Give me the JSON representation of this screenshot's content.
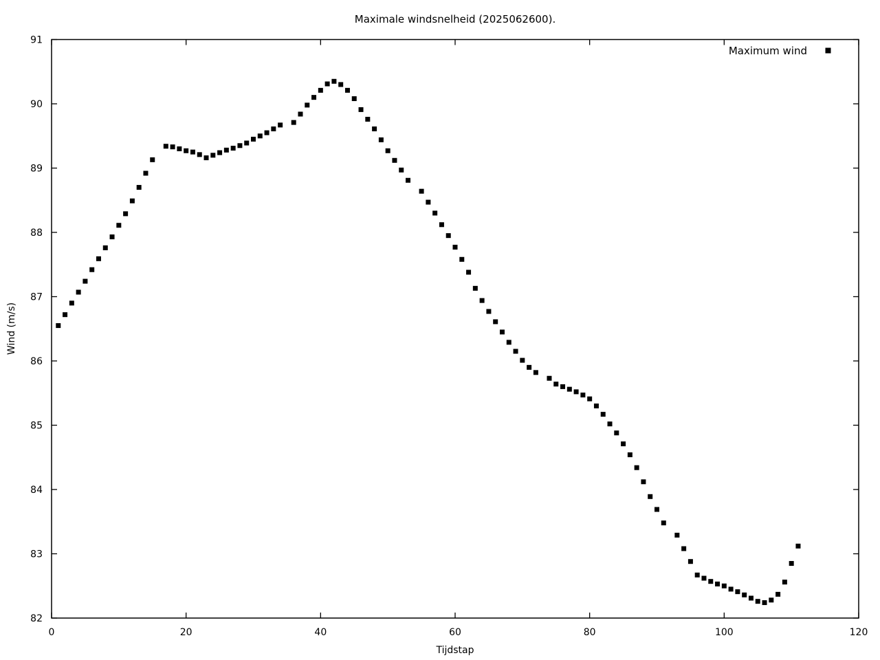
{
  "colors": {
    "background": "#ffffff",
    "foreground": "#000000",
    "marker": "#000000"
  },
  "chart_data": {
    "type": "scatter",
    "title": "Maximale windsnelheid (2025062600).",
    "xlabel": "Tijdstap",
    "ylabel": "Wind (m/s)",
    "xlim": [
      0,
      120
    ],
    "ylim": [
      82,
      91
    ],
    "xticks": [
      0,
      20,
      40,
      60,
      80,
      100,
      120
    ],
    "yticks": [
      82,
      83,
      84,
      85,
      86,
      87,
      88,
      89,
      90,
      91
    ],
    "grid": false,
    "legend": {
      "position": "top-right-inside",
      "entries": [
        {
          "label": "Maximum wind",
          "marker": "filled-square",
          "color": "#000000"
        }
      ]
    },
    "series": [
      {
        "name": "Maximum wind",
        "marker": "filled-square",
        "marker_size_px": 7,
        "color": "#000000",
        "points": [
          [
            1,
            86.55
          ],
          [
            2,
            86.72
          ],
          [
            3,
            86.9
          ],
          [
            4,
            87.07
          ],
          [
            5,
            87.24
          ],
          [
            6,
            87.42
          ],
          [
            7,
            87.59
          ],
          [
            8,
            87.76
          ],
          [
            9,
            87.93
          ],
          [
            10,
            88.11
          ],
          [
            11,
            88.29
          ],
          [
            12,
            88.49
          ],
          [
            13,
            88.7
          ],
          [
            14,
            88.92
          ],
          [
            15,
            89.13
          ],
          [
            17,
            89.34
          ],
          [
            18,
            89.33
          ],
          [
            19,
            89.3
          ],
          [
            20,
            89.27
          ],
          [
            21,
            89.25
          ],
          [
            22,
            89.21
          ],
          [
            23,
            89.16
          ],
          [
            24,
            89.2
          ],
          [
            25,
            89.24
          ],
          [
            26,
            89.28
          ],
          [
            27,
            89.31
          ],
          [
            28,
            89.35
          ],
          [
            29,
            89.39
          ],
          [
            30,
            89.45
          ],
          [
            31,
            89.5
          ],
          [
            32,
            89.55
          ],
          [
            33,
            89.61
          ],
          [
            34,
            89.67
          ],
          [
            36,
            89.71
          ],
          [
            37,
            89.84
          ],
          [
            38,
            89.98
          ],
          [
            39,
            90.1
          ],
          [
            40,
            90.21
          ],
          [
            41,
            90.31
          ],
          [
            42,
            90.35
          ],
          [
            43,
            90.3
          ],
          [
            44,
            90.21
          ],
          [
            45,
            90.08
          ],
          [
            46,
            89.91
          ],
          [
            47,
            89.76
          ],
          [
            48,
            89.61
          ],
          [
            49,
            89.44
          ],
          [
            50,
            89.27
          ],
          [
            51,
            89.12
          ],
          [
            52,
            88.97
          ],
          [
            53,
            88.81
          ],
          [
            55,
            88.64
          ],
          [
            56,
            88.47
          ],
          [
            57,
            88.3
          ],
          [
            58,
            88.12
          ],
          [
            59,
            87.95
          ],
          [
            60,
            87.77
          ],
          [
            61,
            87.58
          ],
          [
            62,
            87.38
          ],
          [
            63,
            87.13
          ],
          [
            64,
            86.94
          ],
          [
            65,
            86.77
          ],
          [
            66,
            86.61
          ],
          [
            67,
            86.45
          ],
          [
            68,
            86.29
          ],
          [
            69,
            86.15
          ],
          [
            70,
            86.01
          ],
          [
            71,
            85.9
          ],
          [
            72,
            85.82
          ],
          [
            74,
            85.73
          ],
          [
            75,
            85.64
          ],
          [
            76,
            85.6
          ],
          [
            77,
            85.56
          ],
          [
            78,
            85.52
          ],
          [
            79,
            85.47
          ],
          [
            80,
            85.41
          ],
          [
            81,
            85.3
          ],
          [
            82,
            85.17
          ],
          [
            83,
            85.02
          ],
          [
            84,
            84.88
          ],
          [
            85,
            84.71
          ],
          [
            86,
            84.54
          ],
          [
            87,
            84.34
          ],
          [
            88,
            84.12
          ],
          [
            89,
            83.89
          ],
          [
            90,
            83.69
          ],
          [
            91,
            83.48
          ],
          [
            93,
            83.29
          ],
          [
            94,
            83.08
          ],
          [
            95,
            82.88
          ],
          [
            96,
            82.67
          ],
          [
            97,
            82.62
          ],
          [
            98,
            82.57
          ],
          [
            99,
            82.53
          ],
          [
            100,
            82.5
          ],
          [
            101,
            82.45
          ],
          [
            102,
            82.41
          ],
          [
            103,
            82.36
          ],
          [
            104,
            82.31
          ],
          [
            105,
            82.26
          ],
          [
            106,
            82.24
          ],
          [
            107,
            82.28
          ],
          [
            108,
            82.37
          ],
          [
            109,
            82.56
          ],
          [
            110,
            82.85
          ],
          [
            111,
            83.12
          ]
        ]
      }
    ]
  }
}
